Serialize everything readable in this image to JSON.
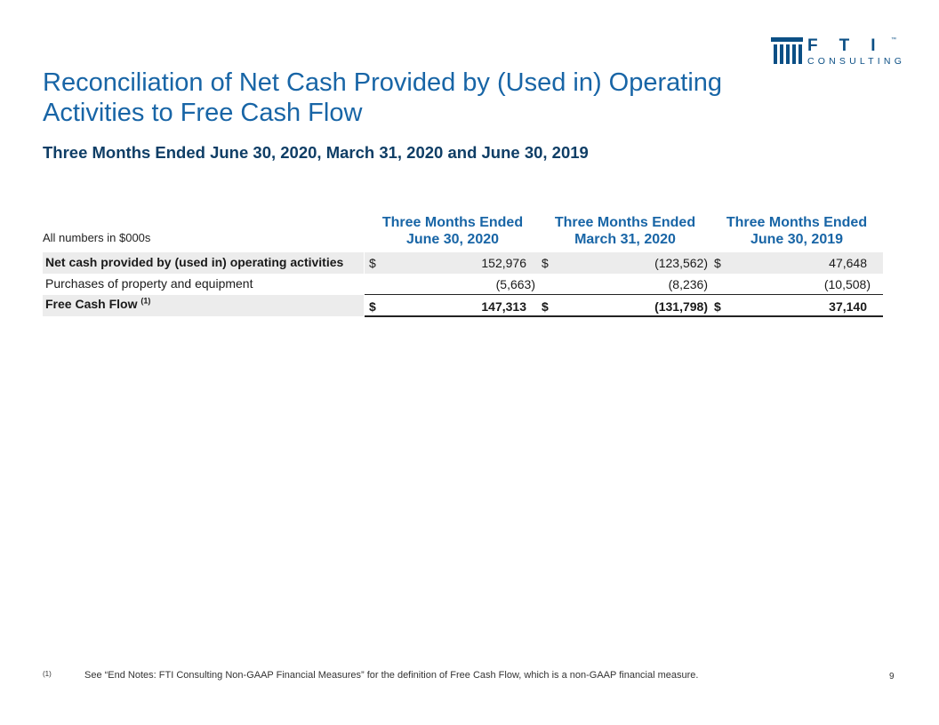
{
  "logo": {
    "letters": "FTI",
    "subtext": "CONSULTING",
    "tm": "™",
    "mark": "fti-building-logo"
  },
  "title": "Reconciliation of Net Cash Provided by (Used in) Operating Activities to Free Cash Flow",
  "subtitle": "Three Months Ended June 30, 2020, March 31, 2020 and June 30, 2019",
  "table": {
    "units_note": "All numbers in $000s",
    "columns": [
      {
        "line1": "Three Months Ended",
        "line2": "June 30, 2020"
      },
      {
        "line1": "Three Months Ended",
        "line2": "March 31, 2020"
      },
      {
        "line1": "Three Months Ended",
        "line2": "June 30, 2019"
      }
    ],
    "rows": [
      {
        "label": "Net cash provided by (used in) operating activities",
        "values": [
          "$",
          "152,976",
          "$",
          "(123,562)",
          "$",
          "47,648"
        ]
      },
      {
        "label": "Purchases of property and equipment",
        "values": [
          "(5,663)",
          "(8,236)",
          "(10,508)"
        ]
      },
      {
        "label": "Free Cash Flow",
        "footnote_ref": "(1)",
        "values": [
          "$",
          "147,313",
          "$",
          "(131,798)",
          "$",
          "37,140"
        ]
      }
    ]
  },
  "footnote": {
    "marker": "(1)",
    "text": "See “End Notes: FTI Consulting Non-GAAP Financial Measures” for the definition of Free Cash Flow, which is a non-GAAP financial measure."
  },
  "page_number": "9",
  "colors": {
    "title_blue": "#1865a6",
    "subtitle_navy": "#0f3e66",
    "row_shading": "#ececec"
  }
}
